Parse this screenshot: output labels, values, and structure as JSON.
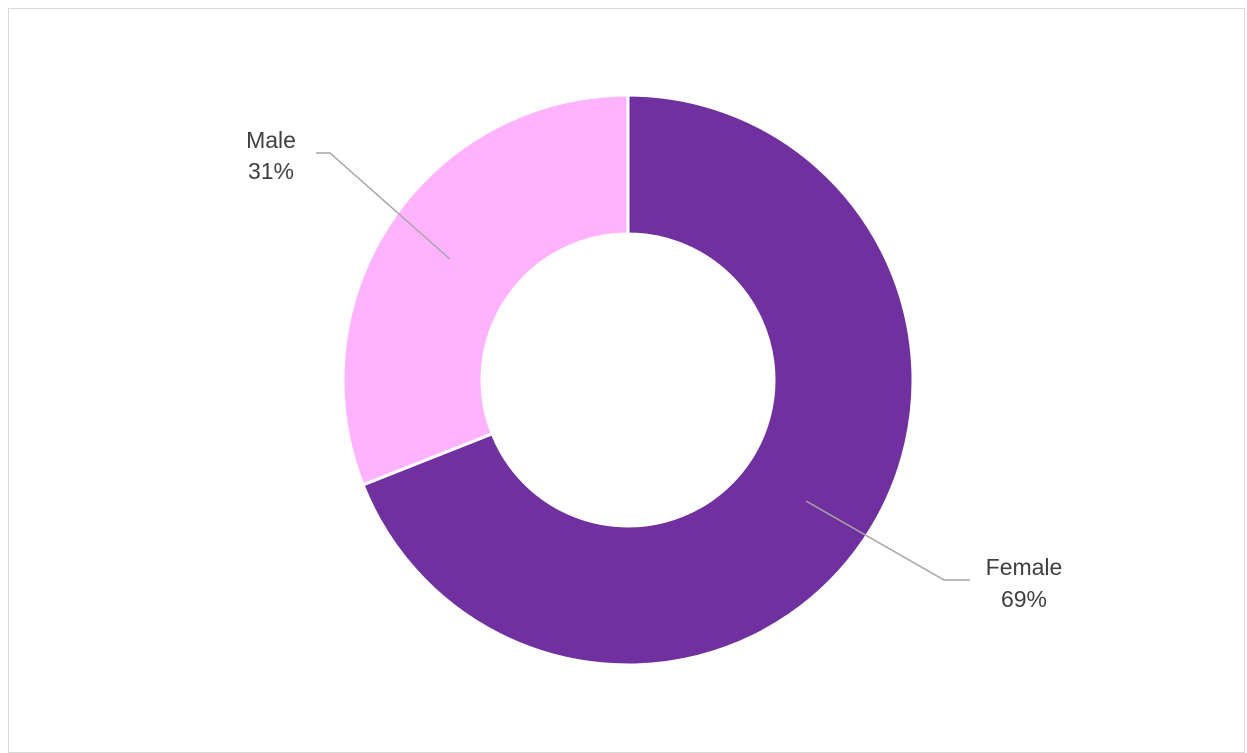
{
  "chart_data": {
    "type": "pie",
    "variant": "donut",
    "title": "",
    "categories": [
      "Female",
      "Male"
    ],
    "values": [
      69,
      31
    ],
    "value_labels": [
      "69%",
      "31%"
    ],
    "colors": [
      "#7030a0",
      "#ffb3ff"
    ],
    "legend": "none",
    "grid": false
  }
}
